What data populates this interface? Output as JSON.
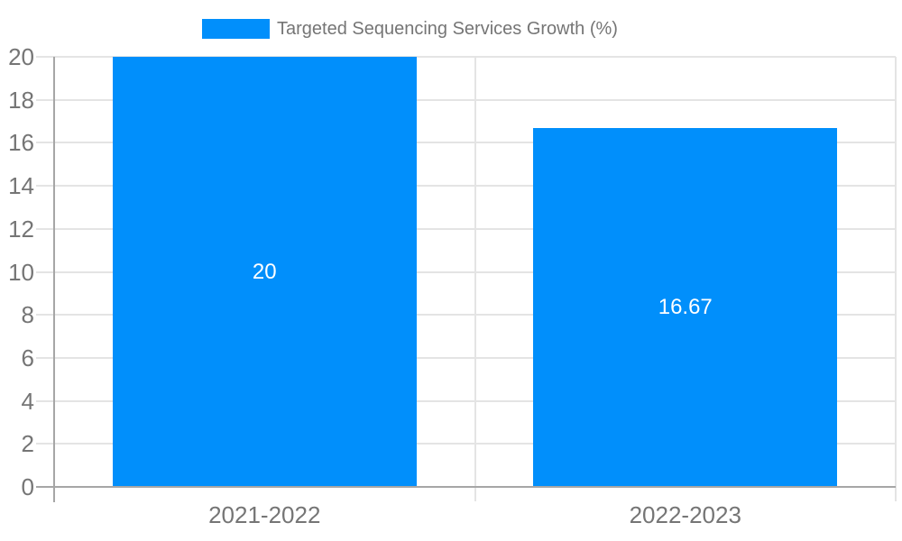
{
  "legend": {
    "label": "Targeted Sequencing Services Growth (%)"
  },
  "colors": {
    "bar": "#018FFB",
    "grid": "#e4e4e4",
    "axis": "#a6a6a6",
    "tick_text": "#757575",
    "legend_text": "#757575",
    "value_text": "#ffffff",
    "background": "#ffffff"
  },
  "chart_data": {
    "type": "bar",
    "title": "",
    "xlabel": "",
    "ylabel": "",
    "categories": [
      "2021-2022",
      "2022-2023"
    ],
    "series": [
      {
        "name": "Targeted Sequencing Services Growth (%)",
        "values": [
          20,
          16.67
        ]
      }
    ],
    "value_labels": [
      "20",
      "16.67"
    ],
    "ylim": [
      0,
      20
    ],
    "yticks": [
      0,
      2,
      4,
      6,
      8,
      10,
      12,
      14,
      16,
      18,
      20
    ],
    "grid": true,
    "legend_position": "top"
  }
}
